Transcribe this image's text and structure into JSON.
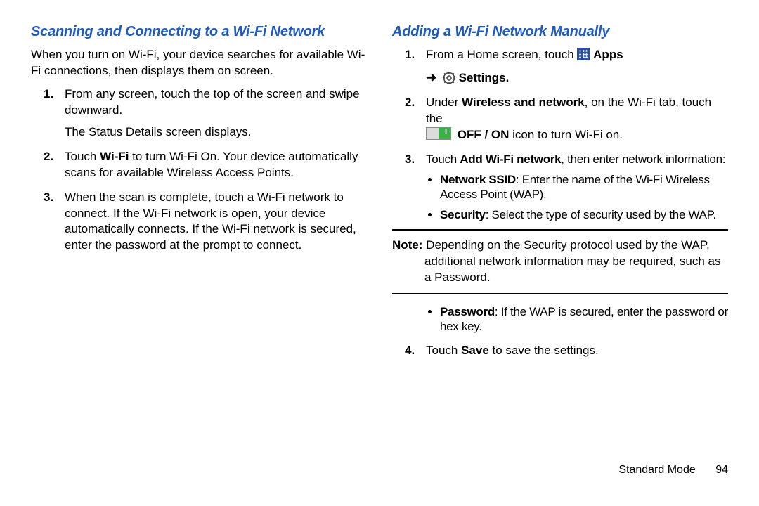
{
  "colors": {
    "heading": "#1f5abf",
    "text": "#000000",
    "background": "#ffffff",
    "rule": "#000000",
    "apps_icon_bg": "#2a4ea0",
    "toggle_off": "#dcdcdc",
    "toggle_on": "#37b34a"
  },
  "typography": {
    "heading_fontsize_pt": 15,
    "heading_style": "bold italic",
    "body_fontsize_pt": 13,
    "condensed_family": "Arial Narrow"
  },
  "left": {
    "title": "Scanning and Connecting to a Wi-Fi Network",
    "intro": "When you turn on Wi-Fi, your device searches for available Wi-Fi connections, then displays them on screen.",
    "steps": [
      {
        "text": "From any screen, touch the top of the screen and swipe downward.",
        "after": "The Status Details screen displays."
      },
      {
        "text_html": "Touch <b>Wi-Fi</b> to turn Wi-Fi On. Your device automatically scans for available Wireless Access Points."
      },
      {
        "text": "When the scan is complete, touch a Wi-Fi network to connect. If the Wi-Fi network is open, your device automatically connects. If the Wi-Fi network is secured, enter the password at the prompt to connect."
      }
    ]
  },
  "right": {
    "title": "Adding a Wi-Fi Network Manually",
    "steps": {
      "s1_pre": "From a Home screen, touch ",
      "s1_apps": "Apps",
      "s1_arrow": "➜",
      "s1_settings": "Settings.",
      "s2_pre": "Under ",
      "s2_bold1": "Wireless and network",
      "s2_mid": ", on the Wi-Fi tab, touch the ",
      "s2_bold2": "OFF / ON",
      "s2_post": " icon to turn Wi-Fi on.",
      "s3_pre": "Touch ",
      "s3_bold": "Add Wi-Fi network",
      "s3_post": ", then enter network information:",
      "s3_bullets": [
        {
          "label": "Network SSID",
          "text": ": Enter the name of the Wi-Fi Wireless Access Point (WAP)."
        },
        {
          "label": "Security",
          "text": ": Select the type of security used by the WAP."
        }
      ],
      "s3_bullets_after": [
        {
          "label": "Password",
          "text": ": If the WAP is secured, enter the password or hex key."
        }
      ],
      "s4_pre": "Touch ",
      "s4_bold": "Save",
      "s4_post": " to save the settings."
    },
    "note_label": "Note:",
    "note_text": " Depending on the Security protocol used by the WAP, additional network information may be required, such as a Password."
  },
  "footer": {
    "mode": "Standard Mode",
    "page": "94"
  }
}
